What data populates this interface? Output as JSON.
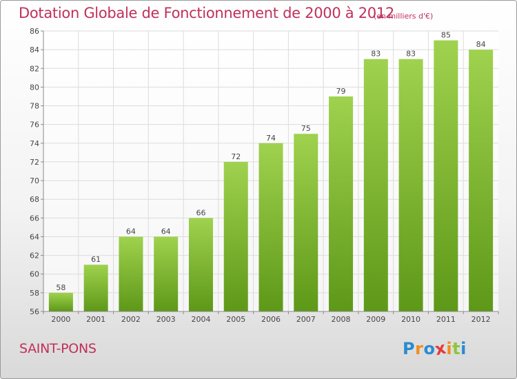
{
  "title": "Dotation Globale de Fonctionnement de 2000 à 2012",
  "subtitle": "(en milliers d'€)",
  "place_name": "SAINT-PONS",
  "brand": {
    "letters": [
      "P",
      "r",
      "o",
      "x",
      "i",
      "t",
      "i"
    ],
    "colors": [
      "#2a8bd0",
      "#f28c1c",
      "#2a8bd0",
      "#e23b3b",
      "#f28c1c",
      "#8cc63f",
      "#2a8bd0"
    ]
  },
  "colors": {
    "title": "#c0305a",
    "bar_top": "#9fd24e",
    "bar_bottom": "#5e9818",
    "grid": "#dcdcdc",
    "axis": "#8a8a8a"
  },
  "chart_data": {
    "type": "bar",
    "title": "Dotation Globale de Fonctionnement de 2000 à 2012",
    "subtitle": "(en milliers d'€)",
    "categories": [
      "2000",
      "2001",
      "2002",
      "2003",
      "2004",
      "2005",
      "2006",
      "2007",
      "2008",
      "2009",
      "2010",
      "2011",
      "2012"
    ],
    "values": [
      58,
      61,
      64,
      64,
      66,
      72,
      74,
      75,
      79,
      83,
      83,
      85,
      84
    ],
    "ylim": [
      56,
      86
    ],
    "ytick_step": 2,
    "grid": true,
    "legend": "none",
    "xlabel": "",
    "ylabel": ""
  }
}
